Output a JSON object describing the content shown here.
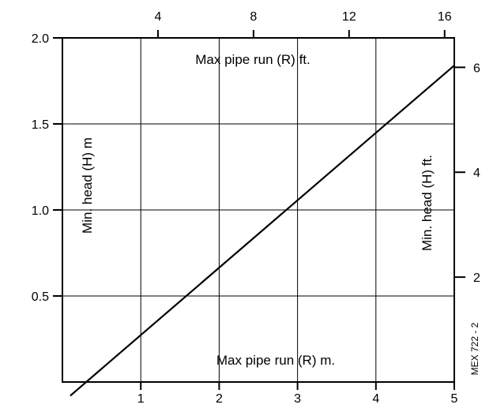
{
  "chart_data": {
    "type": "line",
    "title": "",
    "xlabel": "Max pipe run (R) m.",
    "ylabel": "Min. head (H) m",
    "x2label": "Max pipe run (R) ft.",
    "y2label": "Min. head (H) ft.",
    "xlim": [
      0,
      5
    ],
    "ylim": [
      0,
      2.0
    ],
    "x_ticks": [
      1,
      2,
      3,
      4,
      5
    ],
    "y_ticks": [
      0.5,
      1.0,
      1.5,
      2.0
    ],
    "x2_ticks": [
      4,
      8,
      12,
      16
    ],
    "y2_ticks": [
      2,
      4,
      6
    ],
    "x_tick_labels": [
      "1",
      "2",
      "3",
      "4",
      "5"
    ],
    "y_tick_labels": [
      "0.5",
      "1.0",
      "1.5",
      "2.0"
    ],
    "x2_tick_labels": [
      "4",
      "8",
      "12",
      "16"
    ],
    "y2_tick_labels": [
      "2",
      "4",
      "6"
    ],
    "grid": true,
    "series": [
      {
        "x": [
          0.1,
          5.0
        ],
        "y": [
          -0.08,
          1.84
        ]
      }
    ],
    "reference": "MEX 722 - 2"
  }
}
